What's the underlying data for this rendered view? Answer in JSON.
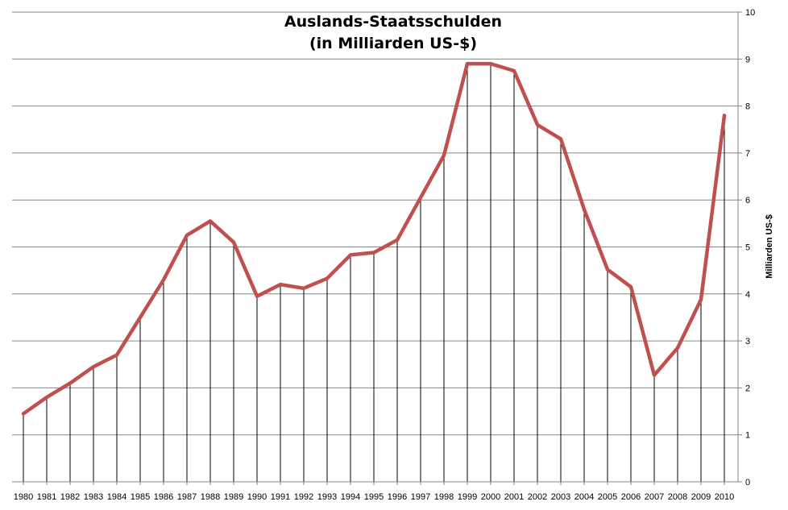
{
  "chart_data": {
    "type": "line",
    "title_lines": [
      "Auslands-Staatsschulden",
      "(in Milliarden US-$)"
    ],
    "xlabel": "",
    "ylabel": "Milliarden US-$",
    "ylim": [
      0,
      10
    ],
    "y_ticks": [
      0,
      1,
      2,
      3,
      4,
      5,
      6,
      7,
      8,
      9,
      10
    ],
    "y_axis_side": "right",
    "grid": "horizontal",
    "drop_lines": true,
    "line_color": "#c0504d",
    "categories": [
      "1980",
      "1981",
      "1982",
      "1983",
      "1984",
      "1985",
      "1986",
      "1987",
      "1988",
      "1989",
      "1990",
      "1991",
      "1992",
      "1993",
      "1994",
      "1995",
      "1996",
      "1997",
      "1998",
      "1999",
      "2000",
      "2001",
      "2002",
      "2003",
      "2004",
      "2005",
      "2006",
      "2007",
      "2008",
      "2009",
      "2010"
    ],
    "values": [
      1.45,
      1.8,
      2.1,
      2.45,
      2.7,
      3.5,
      4.3,
      5.25,
      5.55,
      5.1,
      3.95,
      4.2,
      4.12,
      4.33,
      4.83,
      4.88,
      5.15,
      6.05,
      6.95,
      8.9,
      8.9,
      8.75,
      7.6,
      7.3,
      5.8,
      4.52,
      4.15,
      2.27,
      2.85,
      3.88,
      7.8
    ]
  }
}
